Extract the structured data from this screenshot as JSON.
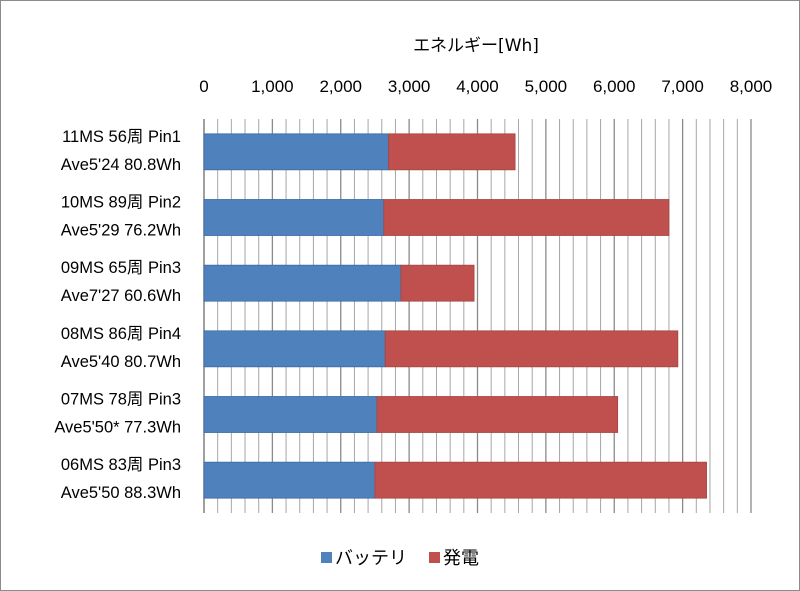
{
  "chart_data": {
    "type": "bar",
    "orientation": "horizontal",
    "stacked": true,
    "title": "",
    "xlabel": "エネルギー[Wh]",
    "ylabel": "",
    "xlim": [
      0,
      8000
    ],
    "x_tick_values": [
      0,
      1000,
      2000,
      3000,
      4000,
      5000,
      6000,
      7000,
      8000
    ],
    "x_tick_labels": [
      "0",
      "1,000",
      "2,000",
      "3,000",
      "4,000",
      "5,000",
      "6,000",
      "7,000",
      "8,000"
    ],
    "x_axis_position": "top",
    "grid": true,
    "legend_position": "bottom",
    "categories": [
      [
        "11MS 56周 Pin1",
        "Ave5'24 80.8Wh"
      ],
      [
        "10MS 89周 Pin2",
        "Ave5'29 76.2Wh"
      ],
      [
        "09MS 65周 Pin3",
        "Ave7'27 60.6Wh"
      ],
      [
        "08MS 86周 Pin4",
        "Ave5'40 80.7Wh"
      ],
      [
        "07MS 78周 Pin3",
        "Ave5'50* 77.3Wh"
      ],
      [
        "06MS 83周 Pin3",
        "Ave5'50 88.3Wh"
      ]
    ],
    "series": [
      {
        "name": "バッテリ",
        "color": "#4f81bd",
        "values": [
          2700,
          2630,
          2880,
          2650,
          2530,
          2500
        ]
      },
      {
        "name": "発電",
        "color": "#c0504d",
        "values": [
          1850,
          4170,
          1070,
          4280,
          3520,
          4850
        ]
      }
    ]
  }
}
